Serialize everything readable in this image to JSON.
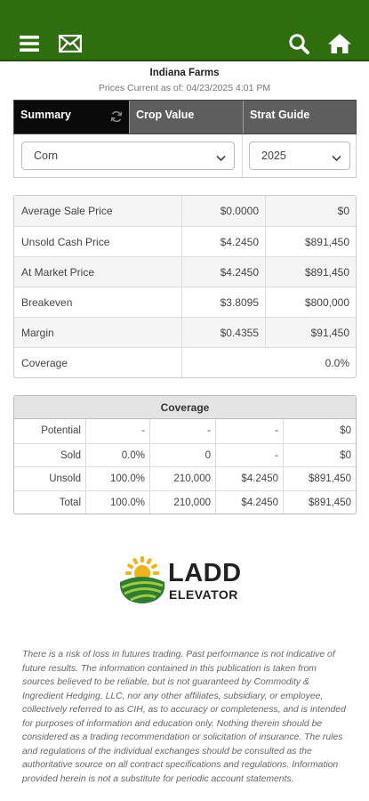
{
  "header": {
    "menu_icon": "menu-icon",
    "mail_icon": "mail-icon",
    "search_icon": "search-icon",
    "home_icon": "home-icon",
    "bar_color": "#2f6e0e"
  },
  "farm_name": "Indiana Farms",
  "prices_current": "Prices Current as of: 04/23/2025 4:01 PM",
  "tabs": [
    {
      "label": "Summary",
      "active": true
    },
    {
      "label": "Crop Value",
      "active": false
    },
    {
      "label": "Strat Guide",
      "active": false
    }
  ],
  "selectors": {
    "crop": "Corn",
    "year": "2025"
  },
  "summary_rows": [
    {
      "label": "Average Sale Price",
      "price": "$0.0000",
      "value": "$0"
    },
    {
      "label": "Unsold Cash Price",
      "price": "$4.2450",
      "value": "$891,450"
    },
    {
      "label": "At Market Price",
      "price": "$4.2450",
      "value": "$891,450"
    },
    {
      "label": "Breakeven",
      "price": "$3.8095",
      "value": "$800,000"
    },
    {
      "label": "Margin",
      "price": "$0.4355",
      "value": "$91,450"
    },
    {
      "label": "Coverage",
      "value": "0.0%"
    }
  ],
  "coverage": {
    "title": "Coverage",
    "rows": [
      {
        "label": "Potential",
        "pct": "-",
        "qty": "-",
        "price": "-",
        "value": "$0"
      },
      {
        "label": "Sold",
        "pct": "0.0%",
        "qty": "0",
        "price": "-",
        "value": "$0"
      },
      {
        "label": "Unsold",
        "pct": "100.0%",
        "qty": "210,000",
        "price": "$4.2450",
        "value": "$891,450"
      },
      {
        "label": "Total",
        "pct": "100.0%",
        "qty": "210,000",
        "price": "$4.2450",
        "value": "$891,450"
      }
    ]
  },
  "logo": {
    "line1": "LADD",
    "line2": "ELEVATOR"
  },
  "disclaimer": "There is a risk of loss in futures trading. Past performance is not indicative of future results. The information contained in this publication is taken from sources believed to be reliable, but is not guaranteed by Commodity & Ingredient Hedging, LLC, nor any other affiliates, subsidiary, or employee, collectively referred to as CIH, as to accuracy or completeness, and is intended for purposes of information and education only. Nothing therein should be considered as a trading recommendation or solicitation of insurance. The rules and regulations of the individual exchanges should be consulted as the authoritative source on all contract specifications and regulations. Information provided herein is not a substitute for periodic account statements."
}
